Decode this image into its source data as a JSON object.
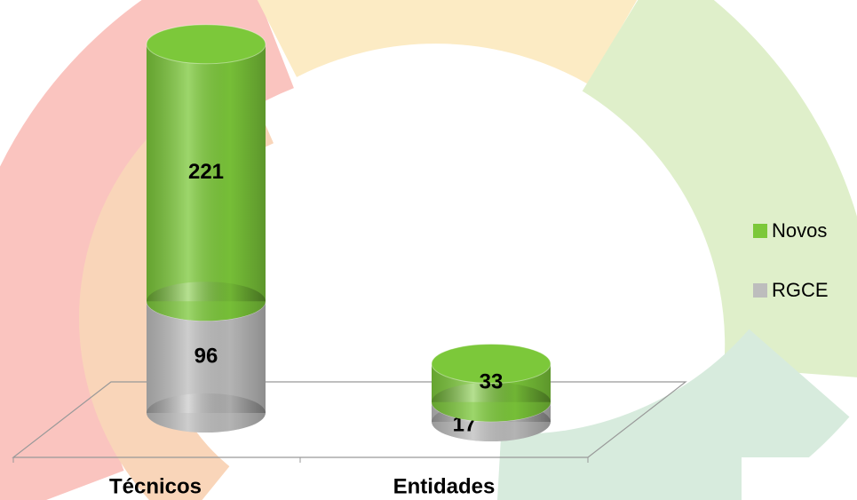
{
  "chart_data": {
    "type": "bar3d-stacked",
    "categories": [
      "Técnicos",
      "Entidades"
    ],
    "series": [
      {
        "name": "Novos",
        "color": "#7cc83a",
        "values": [
          221,
          33
        ]
      },
      {
        "name": "RGCE",
        "color": "#bdbdbd",
        "values": [
          96,
          17
        ]
      }
    ]
  }
}
